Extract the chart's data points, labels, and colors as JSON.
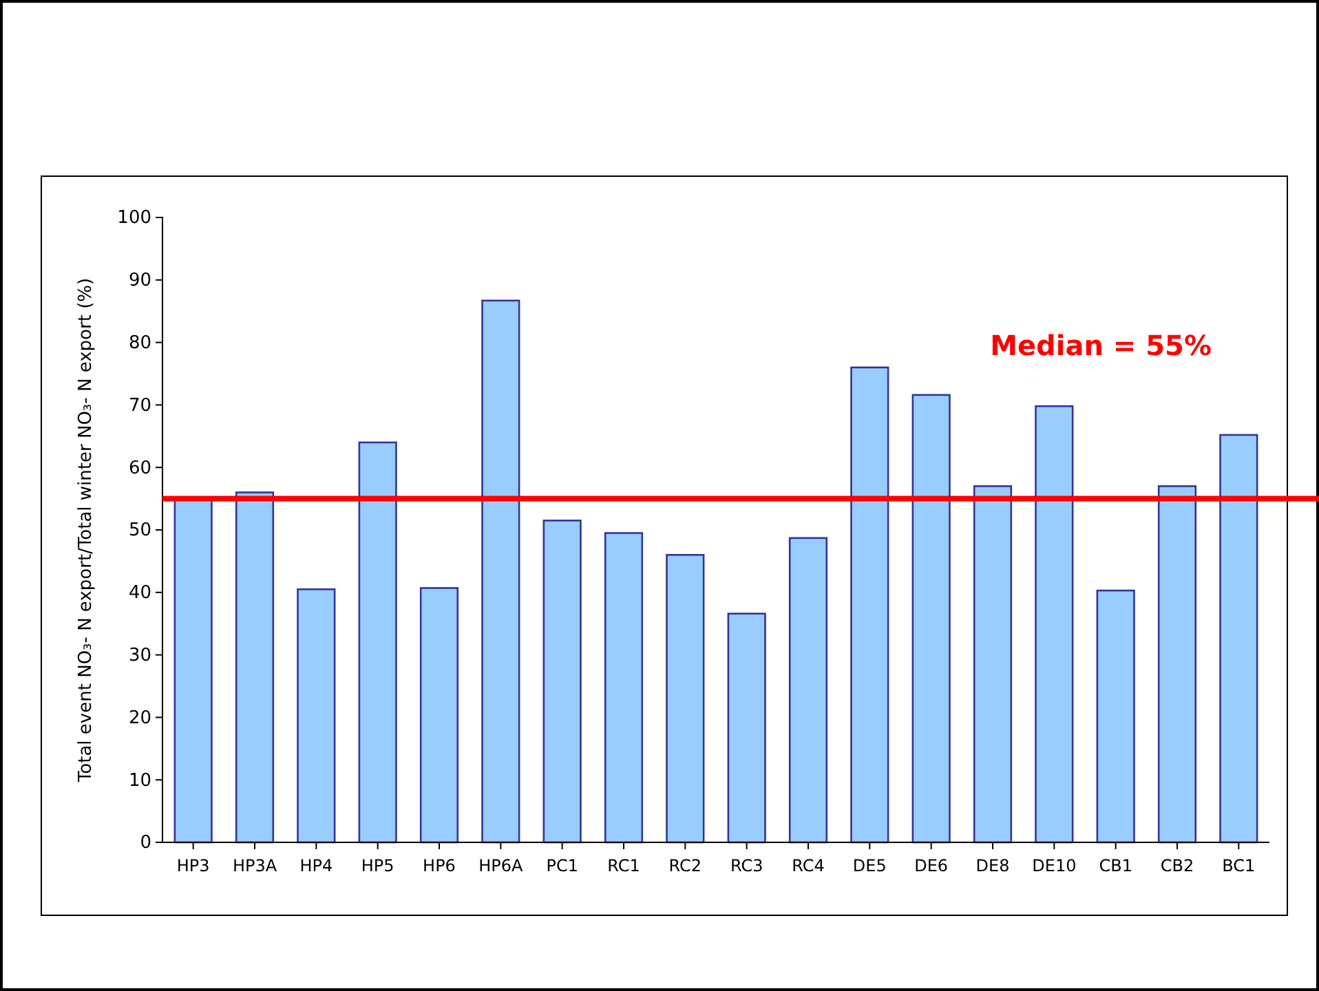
{
  "chart_data": {
    "type": "bar",
    "ylabel": "Total event NO₃- N export/Total winter NO₃- N export (%)",
    "categories": [
      "HP3",
      "HP3A",
      "HP4",
      "HP5",
      "HP6",
      "HP6A",
      "PC1",
      "RC1",
      "RC2",
      "RC3",
      "RC4",
      "DE5",
      "DE6",
      "DE8",
      "DE10",
      "CB1",
      "CB2",
      "BC1"
    ],
    "values": [
      55,
      56,
      40.5,
      64,
      40.7,
      86.7,
      51.5,
      49.5,
      46,
      36.6,
      48.7,
      76,
      71.6,
      57,
      69.8,
      40.3,
      57,
      65.2
    ],
    "color": "#99ccff",
    "ylim": [
      0,
      100
    ],
    "yticks": [
      0,
      10,
      20,
      30,
      40,
      50,
      60,
      70,
      80,
      90,
      100
    ],
    "grid": false,
    "ref_lines": [
      {
        "axis": "y",
        "value": 55,
        "label": "Median = 55%",
        "color": "#ff0000"
      }
    ]
  }
}
